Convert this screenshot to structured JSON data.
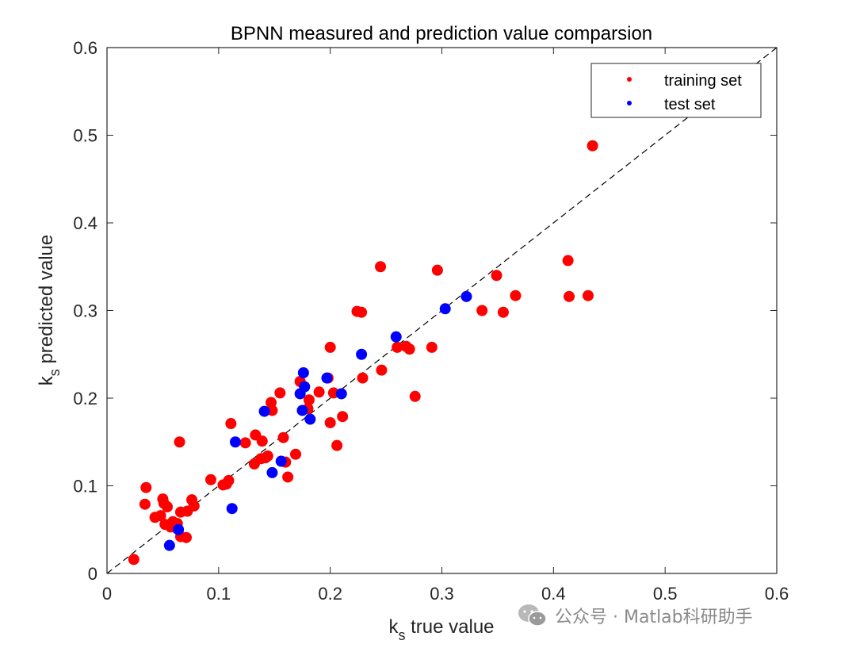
{
  "chart_data": {
    "type": "scatter",
    "title": "BPNN measured and prediction value comparsion",
    "xlabel": {
      "main": "k",
      "sub": "s",
      "rest": " true value"
    },
    "ylabel": {
      "main": "k",
      "sub": "s",
      "rest": " predicted value"
    },
    "xlim": [
      0,
      0.6
    ],
    "ylim": [
      0,
      0.6
    ],
    "xticks": [
      "0",
      "0.1",
      "0.2",
      "0.3",
      "0.4",
      "0.5",
      "0.6"
    ],
    "yticks": [
      "0",
      "0.1",
      "0.2",
      "0.3",
      "0.4",
      "0.5",
      "0.6"
    ],
    "reference_line": {
      "style": "dashed",
      "color": "#000000",
      "from": [
        0,
        0
      ],
      "to": [
        0.6,
        0.6
      ]
    },
    "legend_position": "top-right",
    "series": [
      {
        "name": "training set",
        "color": "#ff0000",
        "points": [
          [
            0.024,
            0.016
          ],
          [
            0.034,
            0.079
          ],
          [
            0.035,
            0.098
          ],
          [
            0.043,
            0.064
          ],
          [
            0.048,
            0.066
          ],
          [
            0.05,
            0.085
          ],
          [
            0.051,
            0.08
          ],
          [
            0.052,
            0.056
          ],
          [
            0.054,
            0.076
          ],
          [
            0.057,
            0.053
          ],
          [
            0.059,
            0.059
          ],
          [
            0.062,
            0.052
          ],
          [
            0.063,
            0.057
          ],
          [
            0.065,
            0.15
          ],
          [
            0.066,
            0.07
          ],
          [
            0.066,
            0.042
          ],
          [
            0.071,
            0.041
          ],
          [
            0.072,
            0.071
          ],
          [
            0.076,
            0.084
          ],
          [
            0.078,
            0.077
          ],
          [
            0.093,
            0.107
          ],
          [
            0.104,
            0.101
          ],
          [
            0.107,
            0.102
          ],
          [
            0.109,
            0.106
          ],
          [
            0.111,
            0.171
          ],
          [
            0.124,
            0.149
          ],
          [
            0.132,
            0.125
          ],
          [
            0.133,
            0.158
          ],
          [
            0.138,
            0.131
          ],
          [
            0.139,
            0.151
          ],
          [
            0.142,
            0.132
          ],
          [
            0.144,
            0.134
          ],
          [
            0.147,
            0.195
          ],
          [
            0.148,
            0.186
          ],
          [
            0.155,
            0.206
          ],
          [
            0.158,
            0.155
          ],
          [
            0.16,
            0.127
          ],
          [
            0.162,
            0.11
          ],
          [
            0.169,
            0.136
          ],
          [
            0.173,
            0.219
          ],
          [
            0.18,
            0.188
          ],
          [
            0.181,
            0.198
          ],
          [
            0.19,
            0.207
          ],
          [
            0.198,
            0.223
          ],
          [
            0.2,
            0.258
          ],
          [
            0.2,
            0.172
          ],
          [
            0.203,
            0.206
          ],
          [
            0.206,
            0.146
          ],
          [
            0.211,
            0.179
          ],
          [
            0.224,
            0.299
          ],
          [
            0.228,
            0.298
          ],
          [
            0.229,
            0.223
          ],
          [
            0.245,
            0.35
          ],
          [
            0.246,
            0.232
          ],
          [
            0.26,
            0.258
          ],
          [
            0.268,
            0.259
          ],
          [
            0.271,
            0.256
          ],
          [
            0.276,
            0.202
          ],
          [
            0.291,
            0.258
          ],
          [
            0.296,
            0.346
          ],
          [
            0.336,
            0.3
          ],
          [
            0.349,
            0.34
          ],
          [
            0.355,
            0.298
          ],
          [
            0.366,
            0.317
          ],
          [
            0.413,
            0.357
          ],
          [
            0.414,
            0.316
          ],
          [
            0.431,
            0.317
          ],
          [
            0.435,
            0.488
          ]
        ]
      },
      {
        "name": "test set",
        "color": "#0000ff",
        "points": [
          [
            0.056,
            0.032
          ],
          [
            0.064,
            0.05
          ],
          [
            0.112,
            0.074
          ],
          [
            0.115,
            0.15
          ],
          [
            0.141,
            0.185
          ],
          [
            0.148,
            0.115
          ],
          [
            0.156,
            0.128
          ],
          [
            0.173,
            0.205
          ],
          [
            0.175,
            0.186
          ],
          [
            0.176,
            0.229
          ],
          [
            0.177,
            0.213
          ],
          [
            0.182,
            0.176
          ],
          [
            0.197,
            0.223
          ],
          [
            0.21,
            0.205
          ],
          [
            0.228,
            0.25
          ],
          [
            0.259,
            0.27
          ],
          [
            0.303,
            0.302
          ],
          [
            0.322,
            0.316
          ]
        ]
      }
    ]
  },
  "watermark": {
    "icon": "wechat-icon",
    "text": "公众号 · Matlab科研助手"
  }
}
